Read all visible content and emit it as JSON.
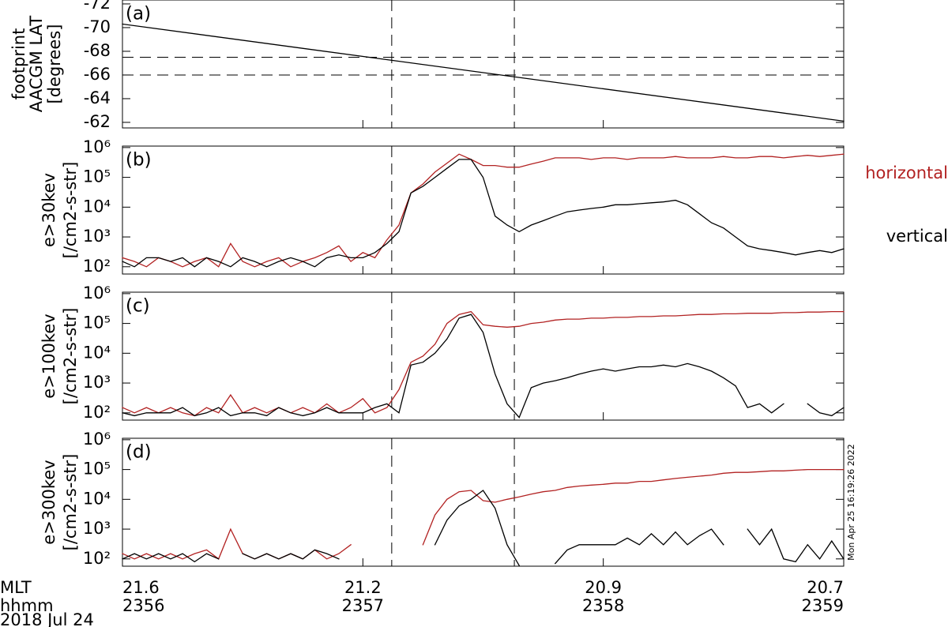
{
  "chart_data": [
    {
      "type": "line",
      "label": "(a)",
      "ylabel": [
        "footprint",
        "AACGM LAT",
        "[degrees]"
      ],
      "xlim": [
        2356,
        2359
      ],
      "ylim": [
        -61.53,
        -72.33
      ],
      "yticks": [
        -72,
        -70,
        -68,
        -66,
        -64,
        -62
      ],
      "hlines": [
        -67.5,
        -66
      ],
      "vlines": [
        2357.12,
        2357.63
      ],
      "x": [
        2356,
        2359
      ],
      "series": [
        {
          "color": "#000000",
          "values": [
            -70.3,
            -62.1
          ]
        }
      ]
    },
    {
      "type": "line",
      "label": "(b)",
      "ylabel": [
        "e>30kev",
        "[/cm2-s-str]"
      ],
      "log_y": true,
      "xlim": [
        2356,
        2359
      ],
      "ylim": [
        57,
        1120000
      ],
      "yticks": [
        {
          "value": 100,
          "label": "10²"
        },
        {
          "value": 1000,
          "label": "10³"
        },
        {
          "value": 10000,
          "label": "10⁴"
        },
        {
          "value": 100000,
          "label": "10⁵"
        },
        {
          "value": 1000000,
          "label": "10⁶"
        }
      ],
      "vlines": [
        2357.12,
        2357.63
      ],
      "x": [
        2356,
        2356.05,
        2356.1,
        2356.15,
        2356.2,
        2356.25,
        2356.3,
        2356.35,
        2356.4,
        2356.45,
        2356.5,
        2356.55,
        2356.6,
        2356.65,
        2356.7,
        2356.75,
        2356.8,
        2356.85,
        2356.9,
        2356.95,
        2357,
        2357.05,
        2357.1,
        2357.15,
        2357.2,
        2357.25,
        2357.3,
        2357.35,
        2357.4,
        2357.45,
        2357.5,
        2357.55,
        2357.6,
        2357.65,
        2357.7,
        2357.75,
        2357.8,
        2357.85,
        2357.9,
        2357.95,
        2358,
        2358.05,
        2358.1,
        2358.15,
        2358.2,
        2358.25,
        2358.3,
        2358.35,
        2358.4,
        2358.45,
        2358.5,
        2358.55,
        2358.6,
        2358.65,
        2358.7,
        2358.75,
        2358.8,
        2358.85,
        2358.9,
        2358.95,
        2359
      ],
      "series": [
        {
          "name": "horizontal",
          "color": "#b22222",
          "values": [
            200,
            150,
            100,
            200,
            150,
            100,
            150,
            200,
            100,
            600,
            150,
            100,
            150,
            200,
            100,
            150,
            200,
            300,
            500,
            150,
            300,
            200,
            800,
            2500,
            30000,
            60000,
            150000,
            300000,
            600000,
            400000,
            250000,
            250000,
            220000,
            220000,
            280000,
            350000,
            450000,
            450000,
            450000,
            400000,
            450000,
            450000,
            400000,
            450000,
            450000,
            450000,
            500000,
            450000,
            450000,
            450000,
            500000,
            450000,
            450000,
            500000,
            500000,
            450000,
            500000,
            550000,
            500000,
            550000,
            600000
          ]
        },
        {
          "name": "vertical",
          "color": "#000000",
          "values": [
            150,
            100,
            200,
            200,
            150,
            200,
            100,
            200,
            150,
            100,
            200,
            150,
            100,
            150,
            200,
            150,
            100,
            200,
            250,
            200,
            200,
            300,
            600,
            1500,
            30000,
            50000,
            100000,
            200000,
            400000,
            400000,
            100000,
            5000,
            2500,
            1500,
            2500,
            3500,
            5000,
            7000,
            8000,
            9000,
            10000,
            12000,
            12000,
            13000,
            14000,
            15000,
            17000,
            12000,
            6000,
            3000,
            2000,
            1000,
            500,
            400,
            350,
            300,
            250,
            300,
            350,
            300,
            400
          ]
        }
      ]
    },
    {
      "type": "line",
      "label": "(c)",
      "ylabel": [
        "e>100kev",
        "[/cm2-s-str]"
      ],
      "log_y": true,
      "xlim": [
        2356,
        2359
      ],
      "ylim": [
        57,
        1120000
      ],
      "yticks": [
        {
          "value": 100,
          "label": "10²"
        },
        {
          "value": 1000,
          "label": "10³"
        },
        {
          "value": 10000,
          "label": "10⁴"
        },
        {
          "value": 100000,
          "label": "10⁵"
        },
        {
          "value": 1000000,
          "label": "10⁶"
        }
      ],
      "vlines": [
        2357.12,
        2357.63
      ],
      "x": [
        2356,
        2356.05,
        2356.1,
        2356.15,
        2356.2,
        2356.25,
        2356.3,
        2356.35,
        2356.4,
        2356.45,
        2356.5,
        2356.55,
        2356.6,
        2356.65,
        2356.7,
        2356.75,
        2356.8,
        2356.85,
        2356.9,
        2356.95,
        2357,
        2357.05,
        2357.1,
        2357.15,
        2357.2,
        2357.25,
        2357.3,
        2357.35,
        2357.4,
        2357.45,
        2357.5,
        2357.55,
        2357.6,
        2357.65,
        2357.7,
        2357.75,
        2357.8,
        2357.85,
        2357.9,
        2357.95,
        2358,
        2358.05,
        2358.1,
        2358.15,
        2358.2,
        2358.25,
        2358.3,
        2358.35,
        2358.4,
        2358.45,
        2358.5,
        2358.55,
        2358.6,
        2358.65,
        2358.7,
        2358.75,
        2358.8,
        2358.85,
        2358.9,
        2358.95,
        2359
      ],
      "series": [
        {
          "color": "#b22222",
          "values": [
            150,
            100,
            150,
            100,
            150,
            100,
            80,
            150,
            100,
            400,
            100,
            150,
            100,
            150,
            100,
            150,
            100,
            200,
            100,
            150,
            300,
            100,
            150,
            600,
            5000,
            8000,
            20000,
            100000,
            200000,
            250000,
            90000,
            80000,
            75000,
            80000,
            100000,
            110000,
            130000,
            140000,
            140000,
            150000,
            150000,
            160000,
            160000,
            170000,
            170000,
            180000,
            180000,
            190000,
            200000,
            200000,
            210000,
            210000,
            220000,
            220000,
            220000,
            230000,
            230000,
            240000,
            240000,
            250000,
            250000
          ]
        },
        {
          "color": "#000000",
          "values": [
            100,
            80,
            100,
            100,
            100,
            150,
            80,
            100,
            150,
            80,
            100,
            100,
            80,
            150,
            100,
            80,
            100,
            150,
            100,
            100,
            100,
            150,
            200,
            100,
            4000,
            5000,
            10000,
            30000,
            150000,
            200000,
            50000,
            2000,
            200,
            70,
            700,
            1000,
            1200,
            1500,
            2000,
            2500,
            3000,
            2500,
            3000,
            3500,
            3500,
            4000,
            3500,
            4500,
            3500,
            2500,
            1500,
            800,
            150,
            200,
            100,
            200,
            null,
            200,
            100,
            80,
            150
          ]
        }
      ]
    },
    {
      "type": "line",
      "label": "(d)",
      "ylabel": [
        "e>300kev",
        "[/cm2-s-str]"
      ],
      "log_y": true,
      "xlim": [
        2356,
        2359
      ],
      "ylim": [
        57,
        1120000
      ],
      "yticks": [
        {
          "value": 100,
          "label": "10²"
        },
        {
          "value": 1000,
          "label": "10³"
        },
        {
          "value": 10000,
          "label": "10⁴"
        },
        {
          "value": 100000,
          "label": "10⁵"
        },
        {
          "value": 1000000,
          "label": "10⁶"
        }
      ],
      "vlines": [
        2357.12,
        2357.63
      ],
      "xticks": [
        2356,
        2357,
        2358,
        2359
      ],
      "mlt_labels": [
        "21.6",
        "21.2",
        "20.9",
        "20.7"
      ],
      "x_row_labels": [
        "MLT",
        "hhmm"
      ],
      "date": "2018 Jul 24",
      "stamp": "Mon Apr 25 16:19:26 2022",
      "x": [
        2356,
        2356.05,
        2356.1,
        2356.15,
        2356.2,
        2356.25,
        2356.3,
        2356.35,
        2356.4,
        2356.45,
        2356.5,
        2356.55,
        2356.6,
        2356.65,
        2356.7,
        2356.75,
        2356.8,
        2356.85,
        2356.9,
        2356.95,
        2357,
        2357.05,
        2357.1,
        2357.15,
        2357.2,
        2357.25,
        2357.3,
        2357.35,
        2357.4,
        2357.45,
        2357.5,
        2357.55,
        2357.6,
        2357.65,
        2357.7,
        2357.75,
        2357.8,
        2357.85,
        2357.9,
        2357.95,
        2358,
        2358.05,
        2358.1,
        2358.15,
        2358.2,
        2358.25,
        2358.3,
        2358.35,
        2358.4,
        2358.45,
        2358.5,
        2358.55,
        2358.6,
        2358.65,
        2358.7,
        2358.75,
        2358.8,
        2358.85,
        2358.9,
        2358.95,
        2359
      ],
      "series": [
        {
          "color": "#b22222",
          "values": [
            150,
            100,
            150,
            100,
            150,
            100,
            150,
            200,
            100,
            1000,
            150,
            100,
            150,
            100,
            150,
            100,
            200,
            100,
            150,
            300,
            null,
            null,
            null,
            null,
            null,
            300,
            3000,
            10000,
            18000,
            20000,
            9000,
            8000,
            10000,
            12000,
            15000,
            18000,
            20000,
            25000,
            28000,
            30000,
            32000,
            35000,
            35000,
            40000,
            40000,
            45000,
            50000,
            55000,
            60000,
            65000,
            75000,
            80000,
            80000,
            85000,
            90000,
            90000,
            95000,
            100000,
            100000,
            100000,
            100000
          ]
        },
        {
          "color": "#000000",
          "values": [
            100,
            150,
            100,
            150,
            100,
            150,
            80,
            150,
            100,
            null,
            150,
            100,
            150,
            100,
            150,
            100,
            200,
            150,
            100,
            null,
            null,
            null,
            null,
            null,
            null,
            null,
            300,
            2000,
            6000,
            10000,
            20000,
            5000,
            300,
            60,
            null,
            null,
            70,
            200,
            300,
            300,
            300,
            300,
            500,
            300,
            700,
            300,
            800,
            300,
            600,
            1000,
            300,
            null,
            1000,
            300,
            1000,
            100,
            80,
            300,
            100,
            400,
            100
          ]
        }
      ]
    }
  ]
}
